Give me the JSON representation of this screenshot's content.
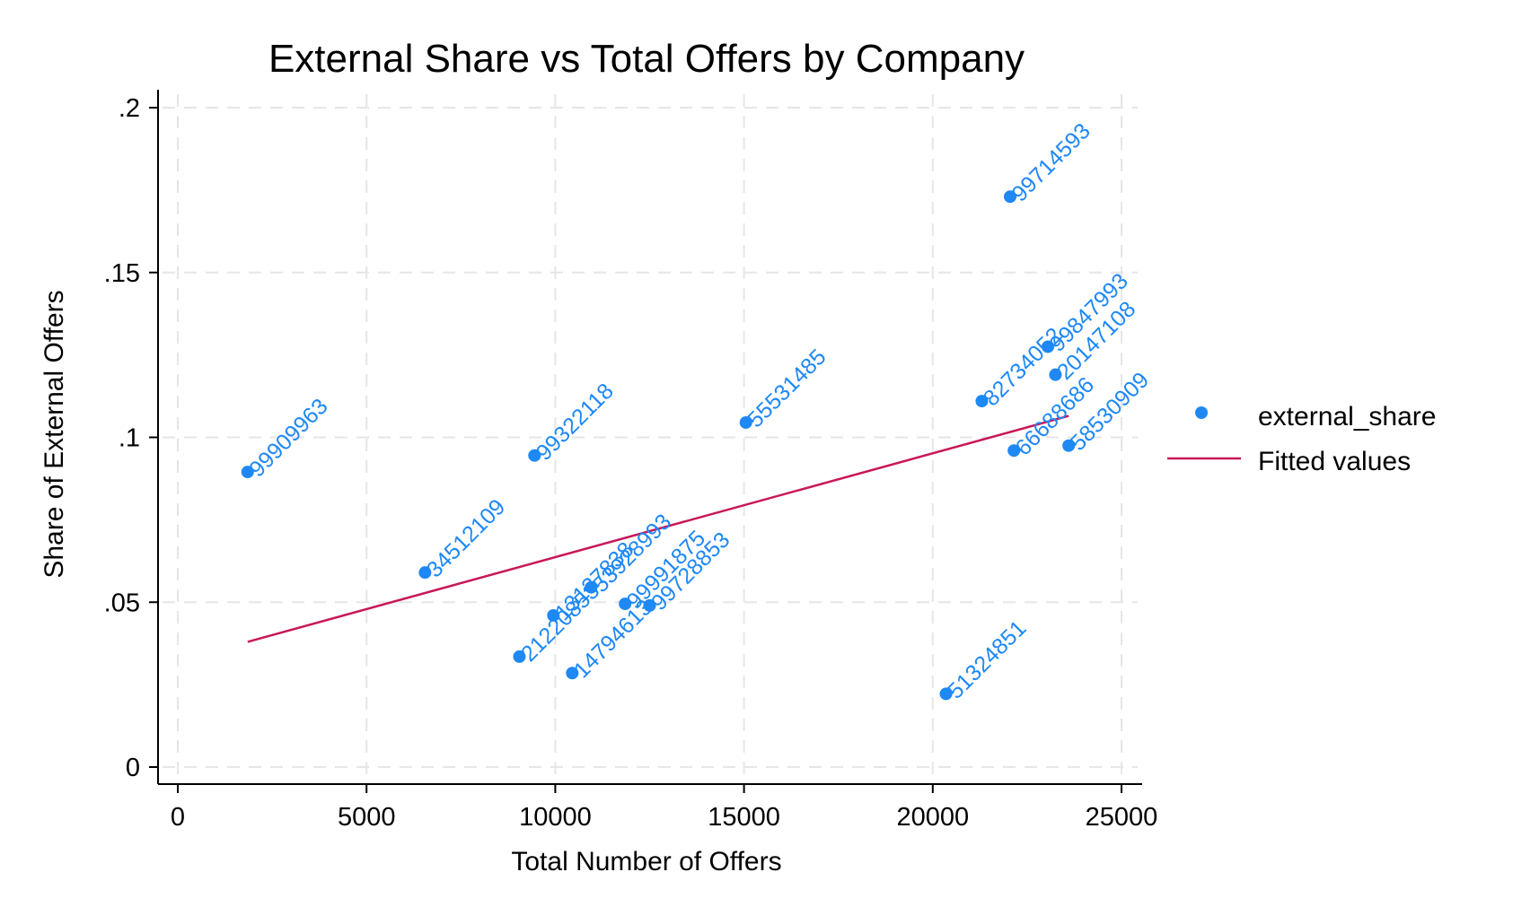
{
  "chart_data": {
    "type": "scatter",
    "title": "External Share vs Total Offers by Company",
    "xlabel": "Total Number of Offers",
    "ylabel": "Share of External Offers",
    "xlim": [
      0,
      25000
    ],
    "ylim": [
      0,
      0.2
    ],
    "x_ticks": [
      0,
      5000,
      10000,
      15000,
      20000,
      25000
    ],
    "x_tick_labels": [
      "0",
      "5000",
      "10000",
      "15000",
      "20000",
      "25000"
    ],
    "y_ticks": [
      0,
      0.05,
      0.1,
      0.15,
      0.2
    ],
    "y_tick_labels": [
      "0",
      ".05",
      ".1",
      ".15",
      ".2"
    ],
    "grid": true,
    "legend_position": "right",
    "colors": {
      "points": "#1e88f5",
      "fit": "#c8175a"
    },
    "series": [
      {
        "name": "external_share",
        "kind": "scatter",
        "points": [
          {
            "x": 1850,
            "y": 0.0895,
            "label": "99909963"
          },
          {
            "x": 6550,
            "y": 0.059,
            "label": "34512109"
          },
          {
            "x": 9050,
            "y": 0.0335,
            "label": "21220853"
          },
          {
            "x": 9450,
            "y": 0.0945,
            "label": "99322118"
          },
          {
            "x": 9950,
            "y": 0.046,
            "label": "13137838"
          },
          {
            "x": 10450,
            "y": 0.0285,
            "label": "14794613"
          },
          {
            "x": 10950,
            "y": 0.0545,
            "label": "53928993"
          },
          {
            "x": 11850,
            "y": 0.0495,
            "label": "99991875"
          },
          {
            "x": 12500,
            "y": 0.049,
            "label": "99728853"
          },
          {
            "x": 15050,
            "y": 0.1045,
            "label": "55531485"
          },
          {
            "x": 20350,
            "y": 0.0222,
            "label": "51324851"
          },
          {
            "x": 21300,
            "y": 0.111,
            "label": "82734052"
          },
          {
            "x": 22050,
            "y": 0.173,
            "label": "99714593"
          },
          {
            "x": 22150,
            "y": 0.096,
            "label": "66688686"
          },
          {
            "x": 23050,
            "y": 0.1275,
            "label": "99847993"
          },
          {
            "x": 23250,
            "y": 0.119,
            "label": "20147108"
          },
          {
            "x": 23600,
            "y": 0.0975,
            "label": "58530909"
          }
        ]
      },
      {
        "name": "Fitted values",
        "kind": "line",
        "points": [
          {
            "x": 1850,
            "y": 0.038
          },
          {
            "x": 23600,
            "y": 0.1065
          }
        ]
      }
    ]
  }
}
